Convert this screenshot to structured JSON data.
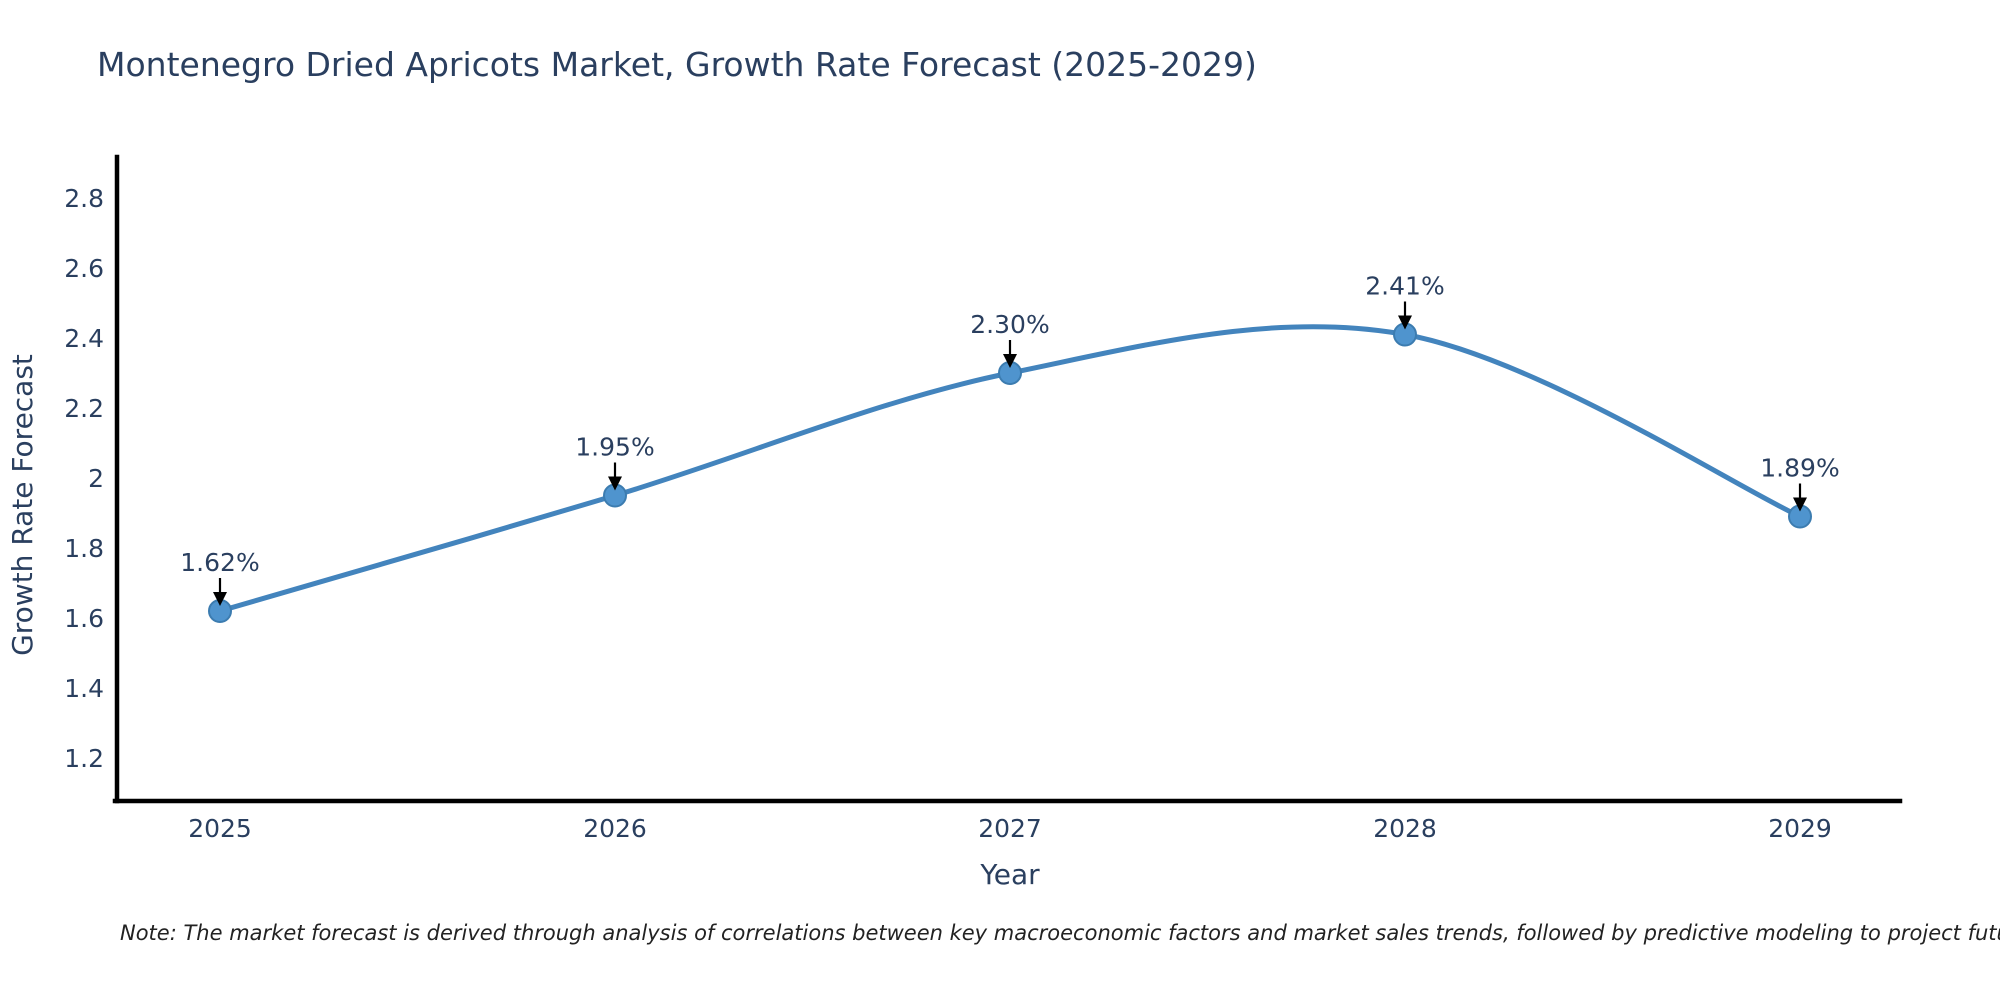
{
  "title": "Montenegro Dried Apricots Market, Growth Rate Forecast (2025-2029)",
  "note": "Note: The market forecast is derived through analysis of correlations between key macroeconomic factors and market sales trends, followed by predictive modeling to project future sales",
  "chart_data": {
    "type": "line",
    "title": "Montenegro Dried Apricots Market, Growth Rate Forecast (2025-2029)",
    "xlabel": "Year",
    "ylabel": "Growth Rate Forecast",
    "categories": [
      "2025",
      "2026",
      "2027",
      "2028",
      "2029"
    ],
    "values": [
      1.62,
      1.95,
      2.3,
      2.41,
      1.89
    ],
    "point_labels": [
      "1.62%",
      "1.95%",
      "2.30%",
      "2.41%",
      "1.89%"
    ],
    "y_ticks": [
      1.2,
      1.4,
      1.6,
      1.8,
      2,
      2.2,
      2.4,
      2.6,
      2.8
    ],
    "y_tick_labels": [
      "1.2",
      "1.4",
      "1.6",
      "1.8",
      "2",
      "2.2",
      "2.4",
      "2.6",
      "2.8"
    ],
    "ylim": [
      1.07,
      2.91
    ],
    "grid": false,
    "legend": false,
    "curve": "spline",
    "line_color": "#4384bd",
    "marker_color": "#4f94ce",
    "marker_edge_color": "#3c7cb0",
    "annotation_arrow_color": "#000000",
    "text_color": "#2a3f5f",
    "axis_line_color": "#000000"
  }
}
